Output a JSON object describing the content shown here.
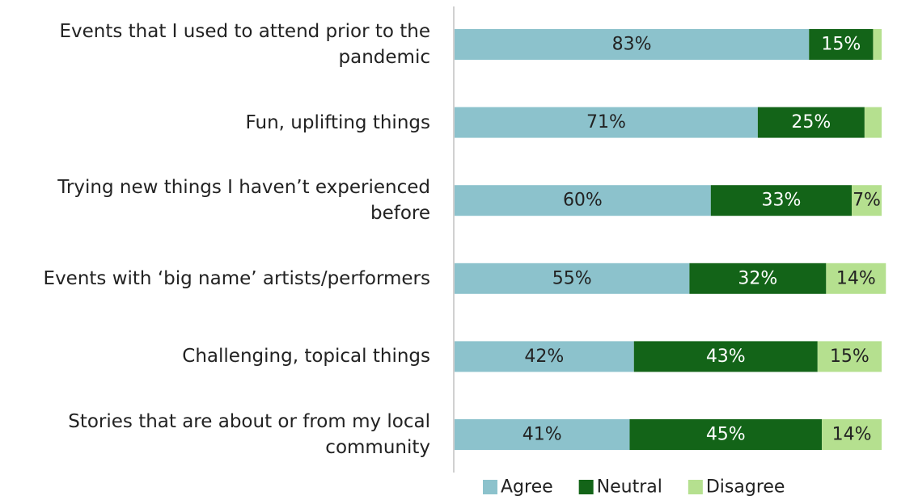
{
  "chart_data": {
    "type": "stacked-bar-horizontal",
    "categories": [
      "Events that I used to attend prior to the pandemic",
      "Fun, uplifting things",
      "Trying new things I haven’t experienced before",
      "Events with ‘big name’ artists/performers",
      "Challenging, topical things",
      "Stories that are about or from my local community"
    ],
    "series": [
      {
        "name": "Agree",
        "color": "#8cc2cc",
        "label_color": "#222222",
        "values": [
          83,
          71,
          60,
          55,
          42,
          41
        ],
        "value_labels": [
          "83%",
          "71%",
          "60%",
          "55%",
          "42%",
          "41%"
        ]
      },
      {
        "name": "Neutral",
        "color": "#136418",
        "label_color": "#ffffff",
        "values": [
          15,
          25,
          33,
          32,
          43,
          45
        ],
        "value_labels": [
          "15%",
          "25%",
          "33%",
          "32%",
          "43%",
          "45%"
        ]
      },
      {
        "name": "Disagree",
        "color": "#b5e08f",
        "label_color": "#222222",
        "values": [
          2,
          4,
          7,
          14,
          15,
          14
        ],
        "value_labels": [
          null,
          null,
          "7%",
          "14%",
          "15%",
          "14%"
        ]
      }
    ],
    "xlim": [
      0,
      100
    ]
  }
}
